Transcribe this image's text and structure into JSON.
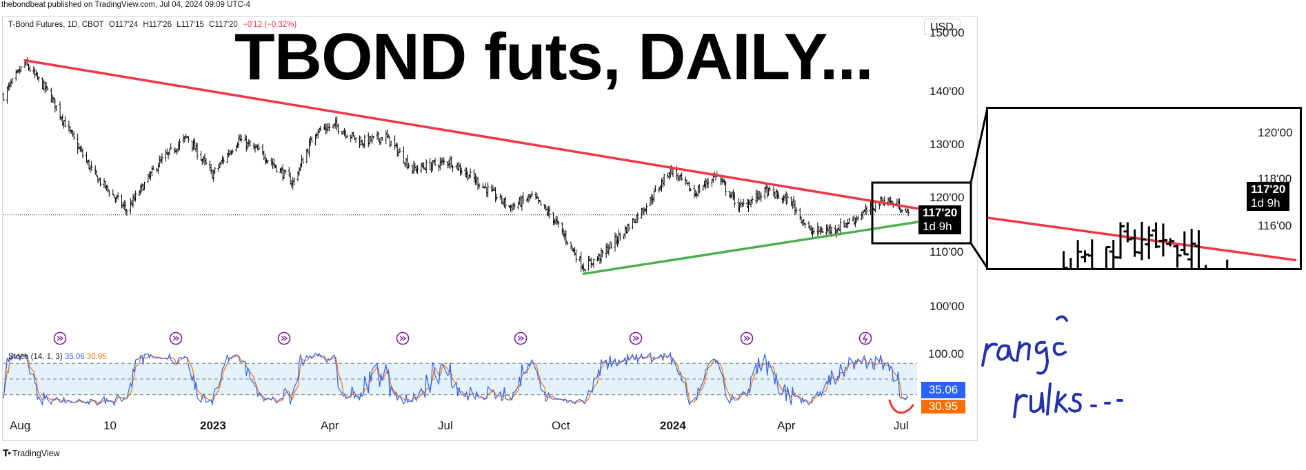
{
  "publisher_line": "thebondbeat published on TradingView.com, Jul 04, 2024 09:09 UTC-4",
  "symbol": {
    "name": "T-Bond Futures, 1D, CBOT",
    "open": "O117'24",
    "high": "H117'26",
    "low": "L117'15",
    "close": "C117'20",
    "change": "−0'12 (−0.32%)"
  },
  "annotation_title": "TBOND futs, DAILY...",
  "currency": "USD",
  "price_axis": {
    "labels": [
      "150'00",
      "140'00",
      "130'00",
      "120'00",
      "110'00",
      "100'00"
    ]
  },
  "last_price": {
    "value": "117'20",
    "countdown": "1d 9h"
  },
  "time_axis": {
    "labels": [
      {
        "text": "Aug",
        "bold": false
      },
      {
        "text": "10",
        "bold": false
      },
      {
        "text": "2023",
        "bold": true
      },
      {
        "text": "Apr",
        "bold": false
      },
      {
        "text": "Jul",
        "bold": false
      },
      {
        "text": "Oct",
        "bold": false
      },
      {
        "text": "2024",
        "bold": true
      },
      {
        "text": "Apr",
        "bold": false
      },
      {
        "text": "Jul",
        "bold": false
      }
    ]
  },
  "stoch": {
    "label": "Stoch (14, 1, 3)",
    "k_value": "35.06",
    "d_value": "30.95",
    "axis_label": "100.00",
    "k_color": "#2962ff",
    "d_color": "#ff6d00"
  },
  "inset": {
    "price_labels": [
      "120'00",
      "118'00",
      "116'00"
    ],
    "last_price": "117'20",
    "countdown": "1d 9h"
  },
  "handwritten_note": "range rules...",
  "footer_logo": "TradingView",
  "colors": {
    "downtrend_line": "#f23645",
    "uptrend_line": "#4caf50",
    "bars": "#000000",
    "event_icons": "#7b1fa2",
    "stoch_band": "#e3f2fd",
    "handwriting": "#2233aa",
    "smile_mark": "#e53935"
  },
  "chart_data": {
    "type": "ohlc",
    "title": "TBOND futs, DAILY...",
    "symbol": "T-Bond Futures, 1D, CBOT",
    "x_range": [
      "2022-07-15",
      "2024-07-03"
    ],
    "y_range": [
      95,
      151
    ],
    "y_scale": "linear",
    "grid": false,
    "close_path": [
      {
        "date": "2022-07-15",
        "close": 139.5
      },
      {
        "date": "2022-08-01",
        "close": 145.5
      },
      {
        "date": "2022-08-20",
        "close": 140.0
      },
      {
        "date": "2022-09-10",
        "close": 131.0
      },
      {
        "date": "2022-09-25",
        "close": 125.0
      },
      {
        "date": "2022-10-21",
        "close": 118.5
      },
      {
        "date": "2022-11-15",
        "close": 127.0
      },
      {
        "date": "2022-12-08",
        "close": 132.0
      },
      {
        "date": "2022-12-28",
        "close": 125.0
      },
      {
        "date": "2023-01-18",
        "close": 131.5
      },
      {
        "date": "2023-02-05",
        "close": 129.0
      },
      {
        "date": "2023-03-02",
        "close": 123.5
      },
      {
        "date": "2023-03-20",
        "close": 133.0
      },
      {
        "date": "2023-04-05",
        "close": 134.0
      },
      {
        "date": "2023-04-25",
        "close": 131.0
      },
      {
        "date": "2023-05-15",
        "close": 132.0
      },
      {
        "date": "2023-06-05",
        "close": 126.0
      },
      {
        "date": "2023-07-05",
        "close": 127.5
      },
      {
        "date": "2023-07-25",
        "close": 124.0
      },
      {
        "date": "2023-08-22",
        "close": 119.0
      },
      {
        "date": "2023-09-08",
        "close": 121.0
      },
      {
        "date": "2023-09-25",
        "close": 117.0
      },
      {
        "date": "2023-10-19",
        "close": 108.0
      },
      {
        "date": "2023-11-01",
        "close": 110.0
      },
      {
        "date": "2023-11-20",
        "close": 114.5
      },
      {
        "date": "2023-12-10",
        "close": 120.0
      },
      {
        "date": "2023-12-27",
        "close": 126.0
      },
      {
        "date": "2024-01-15",
        "close": 121.5
      },
      {
        "date": "2024-02-01",
        "close": 125.0
      },
      {
        "date": "2024-02-20",
        "close": 119.0
      },
      {
        "date": "2024-03-12",
        "close": 122.0
      },
      {
        "date": "2024-04-01",
        "close": 120.0
      },
      {
        "date": "2024-04-16",
        "close": 114.5
      },
      {
        "date": "2024-05-05",
        "close": 115.0
      },
      {
        "date": "2024-05-22",
        "close": 117.0
      },
      {
        "date": "2024-06-14",
        "close": 120.5
      },
      {
        "date": "2024-06-28",
        "close": 119.0
      },
      {
        "date": "2024-07-03",
        "close": 117.625
      }
    ],
    "trendlines": [
      {
        "kind": "resistance",
        "color": "#f23645",
        "from": {
          "date": "2022-08-01",
          "price": 146
        },
        "to": {
          "date": "2024-07-10",
          "price": 118.8
        }
      },
      {
        "kind": "support",
        "color": "#4caf50",
        "from": {
          "date": "2023-10-19",
          "price": 106.8
        },
        "to": {
          "date": "2024-07-10",
          "price": 116.3
        }
      }
    ],
    "last": {
      "price": 117.625,
      "label": "117'20"
    },
    "stochastic": {
      "params": "14, 1, 3",
      "k": 35.06,
      "d": 30.95,
      "bands": [
        20,
        50,
        80
      ]
    }
  }
}
